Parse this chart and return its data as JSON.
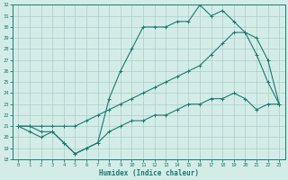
{
  "line1_x": [
    0,
    1,
    2,
    3,
    4,
    5,
    6,
    7,
    8,
    9,
    10,
    11,
    12,
    13,
    14,
    15,
    16,
    17,
    18,
    19,
    20,
    21,
    22,
    23
  ],
  "line1_y": [
    21,
    21,
    20.5,
    20.5,
    19.5,
    18.5,
    19,
    19.5,
    23.5,
    26,
    28,
    30,
    30,
    30,
    30.5,
    30.5,
    32,
    31,
    31.5,
    30.5,
    29.5,
    27.5,
    25,
    23
  ],
  "line2_x": [
    0,
    1,
    2,
    3,
    4,
    5,
    6,
    7,
    8,
    9,
    10,
    11,
    12,
    13,
    14,
    15,
    16,
    17,
    18,
    19,
    20,
    21,
    22,
    23
  ],
  "line2_y": [
    21,
    21,
    21,
    21,
    21,
    21,
    21.5,
    22,
    22.5,
    23,
    23.5,
    24,
    24.5,
    25,
    25.5,
    26,
    26.5,
    27.5,
    28.5,
    29.5,
    29.5,
    29,
    27,
    23
  ],
  "line3_x": [
    0,
    1,
    2,
    3,
    4,
    5,
    6,
    7,
    8,
    9,
    10,
    11,
    12,
    13,
    14,
    15,
    16,
    17,
    18,
    19,
    20,
    21,
    22,
    23
  ],
  "line3_y": [
    21,
    20.5,
    20,
    20.5,
    19.5,
    18.5,
    19,
    19.5,
    20.5,
    21,
    21.5,
    21.5,
    22,
    22,
    22.5,
    23,
    23,
    23.5,
    23.5,
    24,
    23.5,
    22.5,
    23,
    23
  ],
  "color": "#1a7a6e",
  "bg_color": "#d4ece8",
  "grid_color": "#aacfc9",
  "xlabel": "Humidex (Indice chaleur)",
  "ylim": [
    18,
    32
  ],
  "xlim": [
    -0.5,
    23.5
  ],
  "yticks": [
    18,
    19,
    20,
    21,
    22,
    23,
    24,
    25,
    26,
    27,
    28,
    29,
    30,
    31,
    32
  ],
  "xticks": [
    0,
    1,
    2,
    3,
    4,
    5,
    6,
    7,
    8,
    9,
    10,
    11,
    12,
    13,
    14,
    15,
    16,
    17,
    18,
    19,
    20,
    21,
    22,
    23
  ]
}
